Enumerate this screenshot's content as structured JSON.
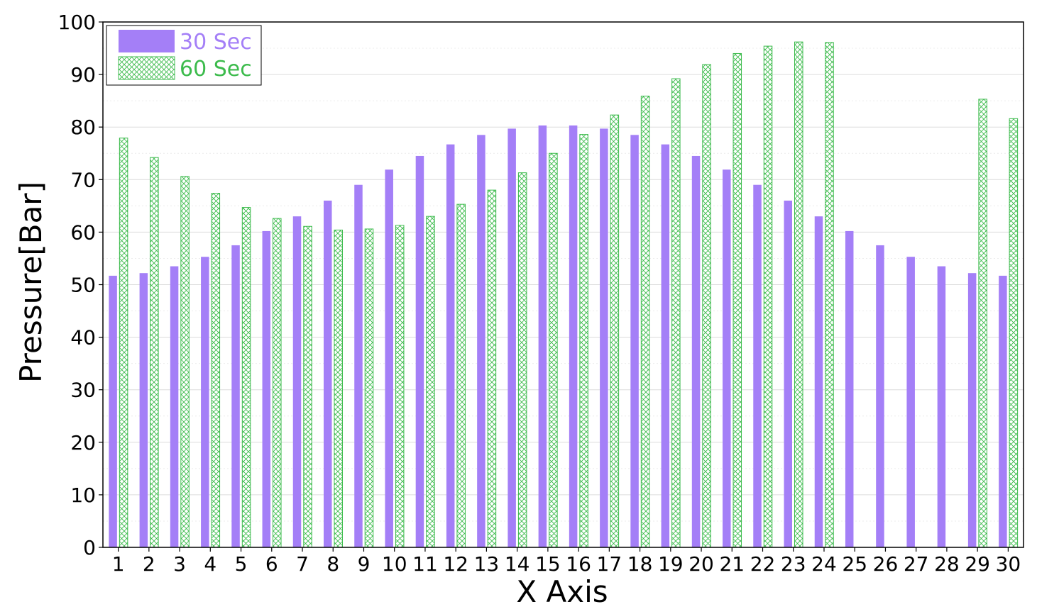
{
  "chart_data": {
    "type": "bar",
    "title": "",
    "xlabel": "X Axis",
    "ylabel": "Pressure[Bar]",
    "ylim": [
      0,
      100
    ],
    "yticks": [
      "0",
      "10",
      "20",
      "30",
      "40",
      "50",
      "60",
      "70",
      "80",
      "90",
      "100"
    ],
    "grid": true,
    "legend_position": "top-left",
    "categories": [
      "1",
      "2",
      "3",
      "4",
      "5",
      "6",
      "7",
      "8",
      "9",
      "10",
      "11",
      "12",
      "13",
      "14",
      "15",
      "16",
      "17",
      "18",
      "19",
      "20",
      "21",
      "22",
      "23",
      "24",
      "25",
      "26",
      "27",
      "28",
      "29",
      "30"
    ],
    "series": [
      {
        "name": "30 Sec",
        "color": "#a47ff7",
        "style": "solid",
        "values": [
          51.7,
          52.2,
          53.5,
          55.3,
          57.5,
          60.2,
          63.0,
          66.0,
          69.0,
          71.9,
          74.5,
          76.7,
          78.5,
          79.7,
          80.3,
          80.3,
          79.7,
          78.5,
          76.7,
          74.5,
          71.9,
          69.0,
          66.0,
          63.0,
          60.2,
          57.5,
          55.3,
          53.5,
          52.2,
          51.7
        ]
      },
      {
        "name": "60 Sec",
        "color": "#3cbb4c",
        "style": "crosshatch",
        "values": [
          77.9,
          74.2,
          70.6,
          67.4,
          64.7,
          62.6,
          61.1,
          60.4,
          60.6,
          61.3,
          63.0,
          65.3,
          68.0,
          71.3,
          75.0,
          78.6,
          82.3,
          85.9,
          89.2,
          91.9,
          94.0,
          95.4,
          96.2,
          96.1,
          null,
          null,
          null,
          null,
          85.3,
          81.6
        ]
      }
    ]
  }
}
